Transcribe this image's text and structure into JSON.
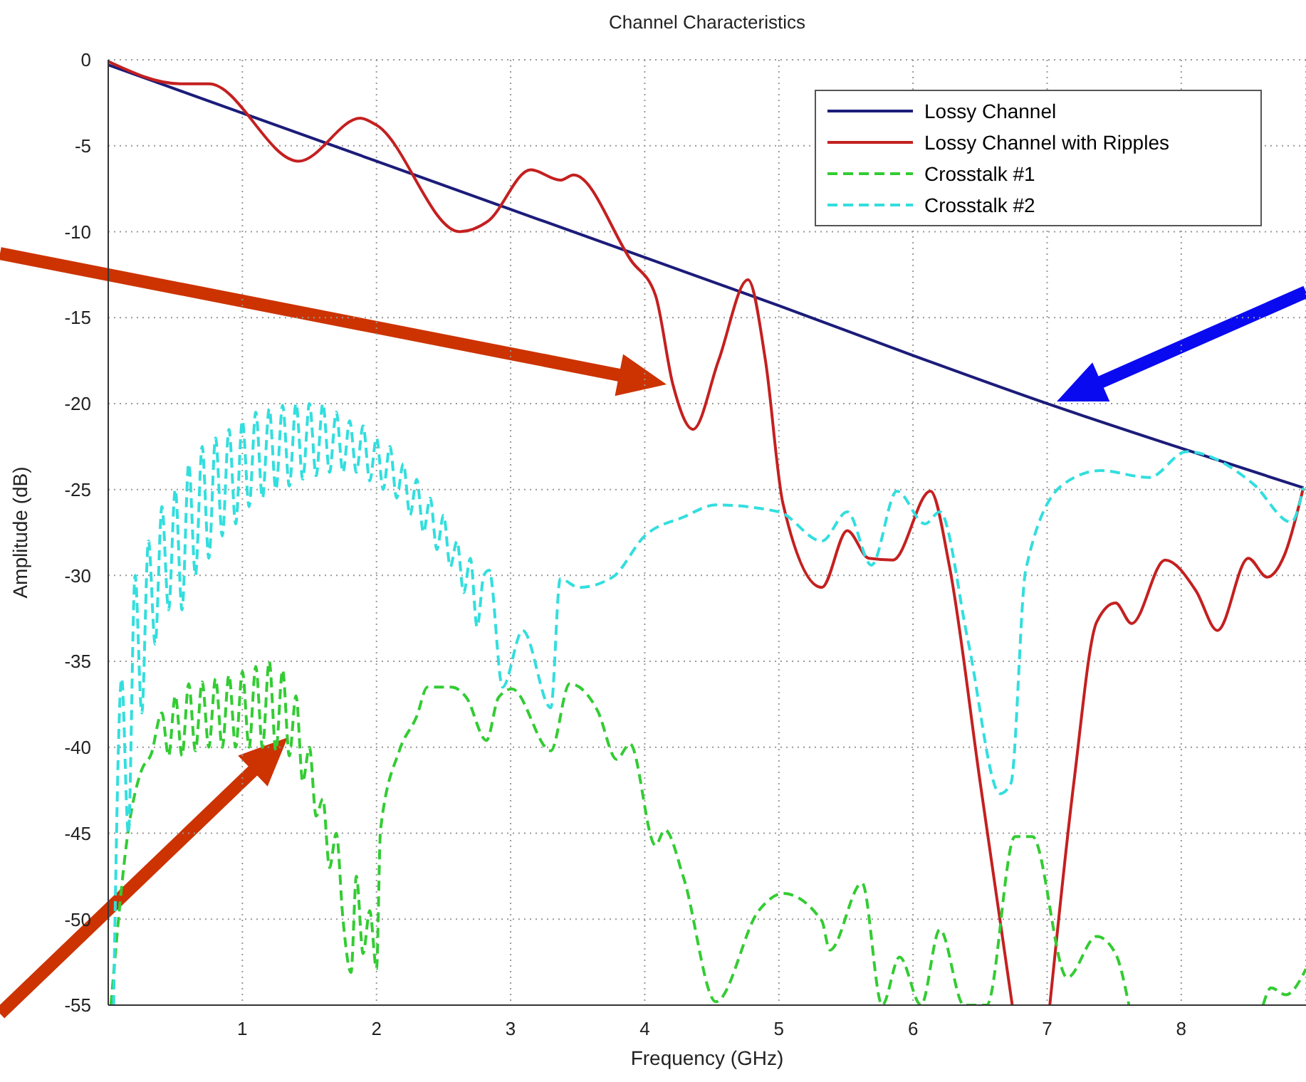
{
  "chart_data": {
    "type": "line",
    "title": "Channel Characteristics",
    "xlabel": "Frequency (GHz)",
    "ylabel": "Amplitude (dB)",
    "xlim": [
      0,
      8.93
    ],
    "xticks": [
      1,
      2,
      3,
      4,
      5,
      6,
      7,
      8
    ],
    "ylim": [
      -55,
      0
    ],
    "yticks": [
      -55,
      -50,
      -45,
      -40,
      -35,
      -30,
      -25,
      -20,
      -15,
      -10,
      -5,
      0
    ],
    "grid": true,
    "legend": "top right",
    "marker": "none",
    "series": [
      {
        "name": "Lossy Channel",
        "color": "#1c1c7a",
        "line_style": "solid",
        "x": [
          0,
          1,
          2,
          3,
          4,
          5,
          6,
          7,
          8,
          8.91
        ],
        "values": [
          -0.3,
          -3.1,
          -5.9,
          -8.7,
          -11.5,
          -14.3,
          -17.2,
          -20,
          -22.6,
          -24.9
        ]
      },
      {
        "name": "Lossy Channel with Ripples",
        "color": "#c42020",
        "line_style": "solid",
        "x": [
          0,
          0.54,
          0.75,
          1.42,
          1.88,
          2.0,
          2.62,
          2.83,
          3.15,
          3.37,
          3.47,
          3.9,
          4.08,
          4.21,
          4.36,
          4.55,
          4.77,
          4.9,
          5.03,
          5.32,
          5.51,
          5.67,
          5.85,
          6.13,
          6.27,
          6.5,
          6.74,
          6.88,
          7.02,
          7.2,
          7.37,
          7.51,
          7.63,
          7.88,
          8.11,
          8.27,
          8.5,
          8.64,
          8.77,
          8.91
        ],
        "values": [
          -0.1,
          -1.4,
          -1.4,
          -5.9,
          -3.4,
          -3.8,
          -10.0,
          -9.4,
          -6.4,
          -7.0,
          -6.7,
          -11.7,
          -13.7,
          -18.9,
          -21.5,
          -17.5,
          -12.8,
          -17.5,
          -25.8,
          -30.7,
          -27.4,
          -29.0,
          -29.1,
          -25.1,
          -29.4,
          -42,
          -55,
          null,
          -55,
          -42,
          -32.7,
          -31.6,
          -32.8,
          -29.1,
          -30.9,
          -33.2,
          -29.0,
          -30.1,
          -28.8,
          -24.9
        ]
      },
      {
        "name": "Crosstalk #1",
        "color": "#33cc33",
        "line_style": "dashed",
        "x": [
          0.02,
          0.15,
          0.25,
          0.32,
          0.4,
          0.45,
          0.5,
          0.55,
          0.6,
          0.65,
          0.7,
          0.75,
          0.8,
          0.85,
          0.9,
          0.95,
          1.0,
          1.05,
          1.1,
          1.15,
          1.2,
          1.25,
          1.3,
          1.35,
          1.4,
          1.45,
          1.5,
          1.55,
          1.6,
          1.65,
          1.7,
          1.75,
          1.81,
          1.85,
          1.9,
          1.95,
          2.0,
          2.03,
          2.17,
          2.3,
          2.38,
          2.56,
          2.67,
          2.82,
          2.91,
          3.01,
          3.3,
          3.44,
          3.65,
          3.79,
          3.89,
          4.08,
          4.15,
          4.29,
          4.53,
          4.85,
          5.03,
          5.32,
          5.38,
          5.62,
          5.77,
          5.9,
          6.06,
          6.2,
          6.38,
          6.55,
          6.76,
          6.89,
          7.15,
          7.37,
          7.51,
          7.61,
          8.1,
          8.61,
          8.67,
          8.78,
          8.93
        ],
        "values": [
          -55,
          -44.8,
          -41.3,
          -40.4,
          -38,
          -40.5,
          -37,
          -40.5,
          -36.3,
          -40.2,
          -36.2,
          -40,
          -36,
          -40,
          -35.8,
          -40,
          -35.6,
          -40,
          -35.3,
          -40,
          -35,
          -40.2,
          -35.5,
          -40.5,
          -37,
          -42,
          -40,
          -44,
          -43,
          -47,
          -45,
          -50,
          -53.1,
          -47.5,
          -52,
          -49.5,
          -52.9,
          -44.8,
          -40.2,
          -38.2,
          -36.5,
          -36.5,
          -37.1,
          -39.6,
          -37.1,
          -36.6,
          -40.2,
          -36.3,
          -37.9,
          -40.7,
          -39.8,
          -45.7,
          -44.8,
          -47.6,
          -54.8,
          -49.5,
          -48.5,
          -50.1,
          -51.8,
          -47.9,
          -55,
          -52.2,
          -55,
          -50.6,
          -55,
          -55,
          -45.2,
          -45.2,
          -53.4,
          -51,
          -52,
          -55,
          null,
          -55,
          -54,
          -54.4,
          -52.9
        ]
      },
      {
        "name": "Crosstalk #2",
        "color": "#33dede",
        "line_style": "dashed",
        "x": [
          0.04,
          0.1,
          0.15,
          0.2,
          0.25,
          0.3,
          0.35,
          0.4,
          0.45,
          0.5,
          0.55,
          0.6,
          0.65,
          0.7,
          0.75,
          0.8,
          0.85,
          0.9,
          0.95,
          1.0,
          1.05,
          1.1,
          1.15,
          1.2,
          1.25,
          1.3,
          1.35,
          1.4,
          1.45,
          1.5,
          1.55,
          1.6,
          1.65,
          1.7,
          1.75,
          1.8,
          1.85,
          1.9,
          1.95,
          2.0,
          2.05,
          2.1,
          2.15,
          2.2,
          2.25,
          2.3,
          2.35,
          2.4,
          2.45,
          2.5,
          2.55,
          2.6,
          2.65,
          2.7,
          2.75,
          2.8,
          2.84,
          2.94,
          3.09,
          3.3,
          3.37,
          3.51,
          3.76,
          4.0,
          4.29,
          4.53,
          5.0,
          5.32,
          5.51,
          5.69,
          5.88,
          6.09,
          6.2,
          6.41,
          6.65,
          6.73,
          6.84,
          7.12,
          7.4,
          7.76,
          8.04,
          8.54,
          8.82,
          8.91
        ],
        "values": [
          -55,
          -36,
          -45,
          -30,
          -38,
          -28,
          -34,
          -26,
          -32,
          -25,
          -32,
          -23.5,
          -30,
          -22.5,
          -29,
          -22,
          -27.7,
          -21.5,
          -27,
          -21,
          -26,
          -20.5,
          -25.5,
          -20.3,
          -25,
          -20.1,
          -24.8,
          -20,
          -24.4,
          -20,
          -24.2,
          -20,
          -24,
          -20.5,
          -24,
          -21,
          -24,
          -21.3,
          -24.5,
          -22,
          -25,
          -22.5,
          -25.5,
          -23.5,
          -26.5,
          -24.4,
          -27.5,
          -25.5,
          -28.5,
          -26.5,
          -29.5,
          -28,
          -31,
          -29,
          -33,
          -30,
          -29.7,
          -36.5,
          -33.2,
          -37.7,
          -30.2,
          -30.7,
          -30.1,
          -27.7,
          -26.6,
          -25.9,
          -26.3,
          -28.0,
          -26.3,
          -29.4,
          -25.1,
          -27.0,
          -26.3,
          -33.8,
          -42.7,
          -42.1,
          -29.7,
          -24.7,
          -23.9,
          -24.3,
          -22.8,
          -24.7,
          -26.9,
          -24.9
        ]
      }
    ]
  }
}
